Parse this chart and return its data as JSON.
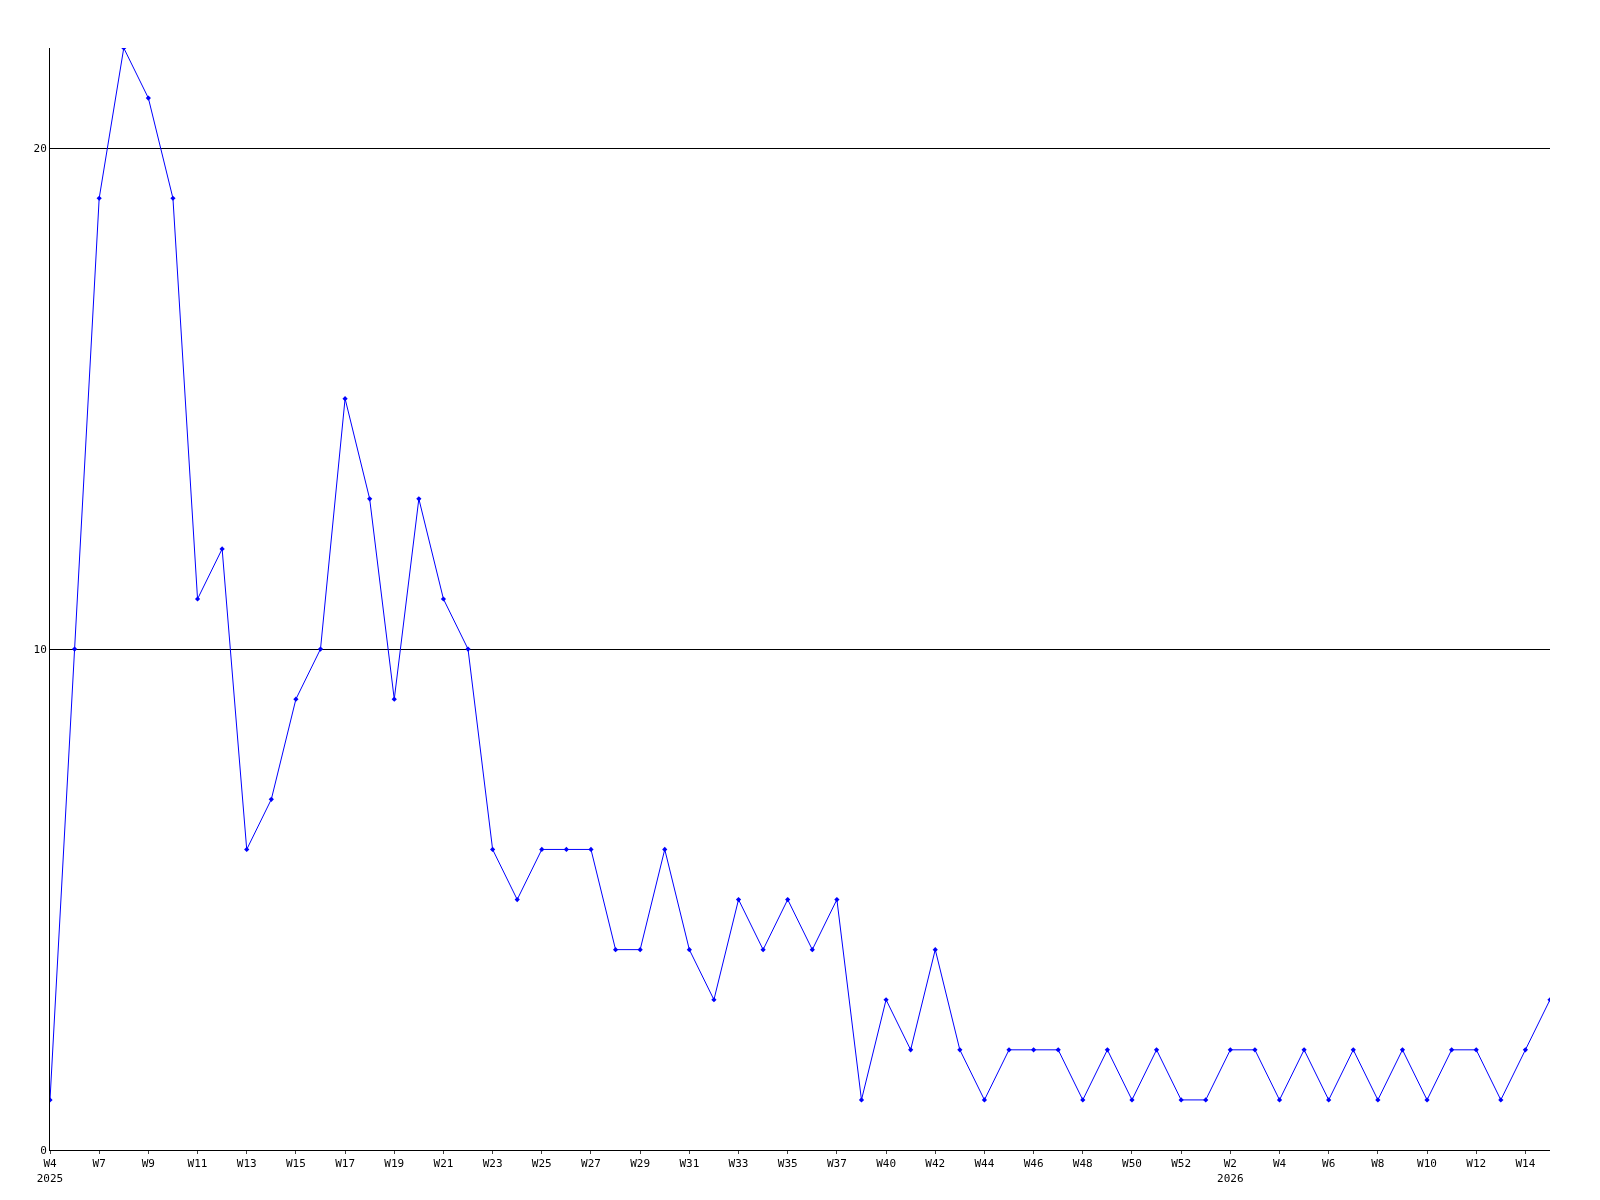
{
  "chart_data": {
    "type": "line",
    "categories": [
      "W4\n2025",
      null,
      "W7",
      null,
      "W9",
      null,
      "W11",
      null,
      "W13",
      null,
      "W15",
      null,
      "W17",
      null,
      "W19",
      null,
      "W21",
      null,
      "W23",
      null,
      "W25",
      null,
      "W27",
      null,
      "W29",
      null,
      "W31",
      null,
      "W33",
      null,
      "W35",
      null,
      "W37",
      null,
      "W40",
      null,
      "W42",
      null,
      "W44",
      null,
      "W46",
      null,
      "W48",
      null,
      "W50",
      null,
      "W52",
      null,
      "W2\n2026",
      null,
      "W4",
      null,
      "W6",
      null,
      "W8",
      null,
      "W10",
      null,
      "W12",
      null,
      "W14",
      null
    ],
    "series": [
      {
        "color": "#0000ff",
        "values": [
          1,
          10,
          19,
          22,
          21,
          19,
          11,
          12,
          6,
          7,
          9,
          10,
          15,
          13,
          9,
          13,
          11,
          10,
          6,
          5,
          6,
          6,
          6,
          4,
          4,
          6,
          4,
          3,
          5,
          4,
          5,
          4,
          5,
          1,
          3,
          2,
          4,
          2,
          1,
          2,
          2,
          2,
          1,
          2,
          1,
          2,
          1,
          1,
          2,
          2,
          1,
          2,
          1,
          2,
          1,
          2,
          1,
          2,
          2,
          1,
          2,
          3
        ]
      }
    ],
    "ylim": [
      0,
      22
    ],
    "yticks": [
      0,
      10,
      20
    ],
    "grid": "y",
    "marker": "diamond",
    "line_style": "solid"
  }
}
